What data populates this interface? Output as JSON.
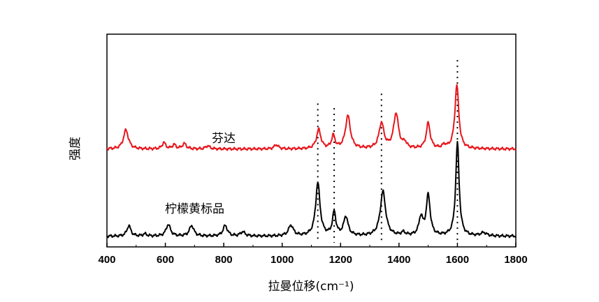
{
  "chart_data": {
    "type": "line",
    "xlabel": "拉曼位移(cm⁻¹)",
    "ylabel": "强度",
    "xlim": [
      400,
      1800
    ],
    "ylim": [
      0,
      1
    ],
    "x_ticks": [
      "400",
      "600",
      "800",
      "1000",
      "1200",
      "1400",
      "1600",
      "1800"
    ],
    "y_ticks": false,
    "grid": false,
    "legend": "none",
    "series": [
      {
        "name": "芬达",
        "color": "#e8151b",
        "baseline": 0.46,
        "peaks": [
          {
            "x": 465,
            "h": 0.09,
            "w": 10
          },
          {
            "x": 595,
            "h": 0.03,
            "w": 7
          },
          {
            "x": 630,
            "h": 0.02,
            "w": 7
          },
          {
            "x": 665,
            "h": 0.025,
            "w": 8
          },
          {
            "x": 745,
            "h": 0.015,
            "w": 8
          },
          {
            "x": 980,
            "h": 0.02,
            "w": 8
          },
          {
            "x": 1125,
            "h": 0.09,
            "w": 9
          },
          {
            "x": 1175,
            "h": 0.06,
            "w": 7
          },
          {
            "x": 1225,
            "h": 0.155,
            "w": 10
          },
          {
            "x": 1340,
            "h": 0.12,
            "w": 10
          },
          {
            "x": 1390,
            "h": 0.165,
            "w": 10
          },
          {
            "x": 1420,
            "h": 0.025,
            "w": 7
          },
          {
            "x": 1500,
            "h": 0.12,
            "w": 8
          },
          {
            "x": 1555,
            "h": 0.015,
            "w": 7
          },
          {
            "x": 1598,
            "h": 0.3,
            "w": 8
          }
        ]
      },
      {
        "name": "柠檬黄标品",
        "color": "#000000",
        "baseline": 0.05,
        "peaks": [
          {
            "x": 475,
            "h": 0.05,
            "w": 8
          },
          {
            "x": 530,
            "h": 0.01,
            "w": 8
          },
          {
            "x": 610,
            "h": 0.055,
            "w": 9
          },
          {
            "x": 690,
            "h": 0.05,
            "w": 9
          },
          {
            "x": 805,
            "h": 0.05,
            "w": 9
          },
          {
            "x": 865,
            "h": 0.02,
            "w": 9
          },
          {
            "x": 1030,
            "h": 0.05,
            "w": 10
          },
          {
            "x": 1122,
            "h": 0.25,
            "w": 9
          },
          {
            "x": 1178,
            "h": 0.11,
            "w": 7
          },
          {
            "x": 1218,
            "h": 0.09,
            "w": 9
          },
          {
            "x": 1345,
            "h": 0.21,
            "w": 11
          },
          {
            "x": 1415,
            "h": 0.015,
            "w": 8
          },
          {
            "x": 1475,
            "h": 0.085,
            "w": 8
          },
          {
            "x": 1500,
            "h": 0.19,
            "w": 8
          },
          {
            "x": 1600,
            "h": 0.44,
            "w": 7
          },
          {
            "x": 1690,
            "h": 0.015,
            "w": 12
          }
        ]
      }
    ],
    "annotations": [
      {
        "text": "芬达",
        "series": "芬达"
      },
      {
        "text": "柠檬黄标品",
        "series": "柠檬黄标品"
      }
    ],
    "reference_lines": [
      1122,
      1178,
      1340,
      1600
    ]
  }
}
